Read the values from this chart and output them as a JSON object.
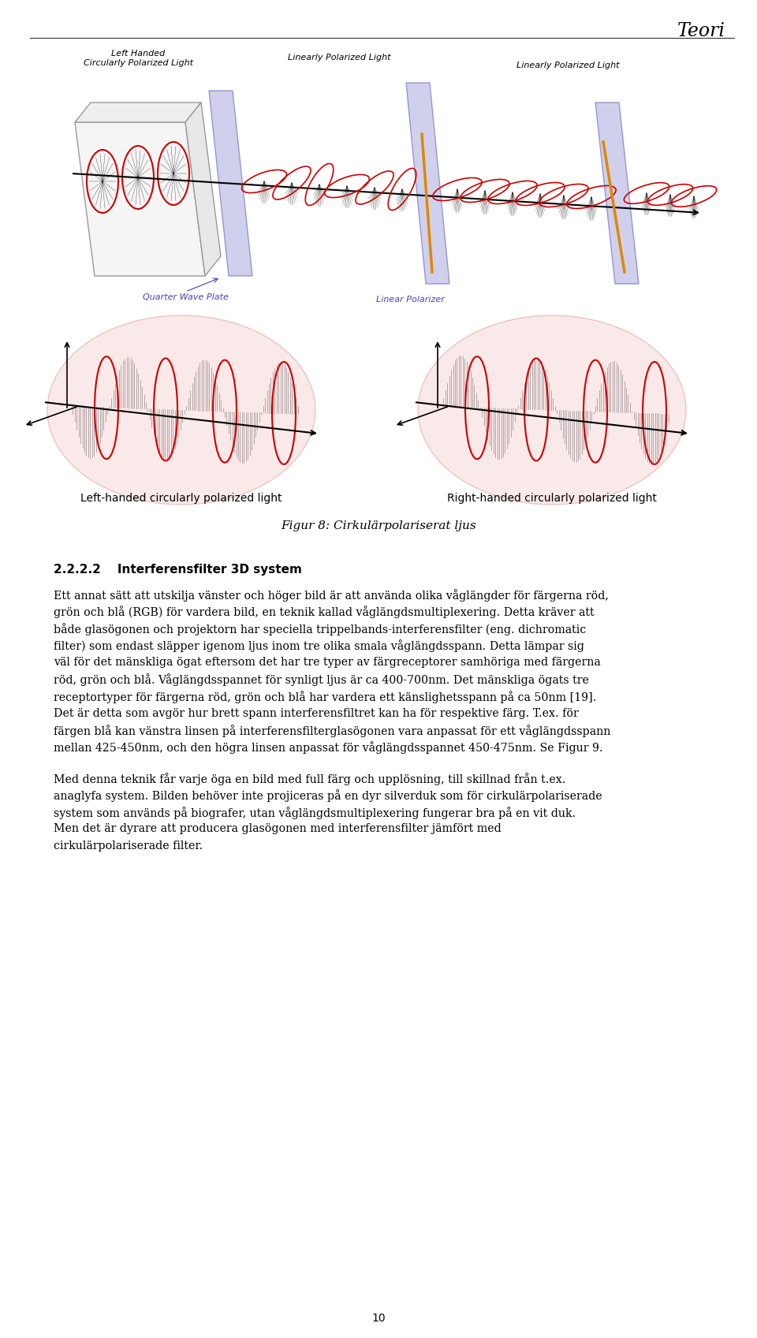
{
  "page_title": "Teori",
  "section_heading": "2.2.2.2    Interferensfilter 3D system",
  "paragraph1_lines": [
    "Ett annat sätt att utskilja vänster och höger bild är att använda olika våglängder för färgerna röd,",
    "grön och blå (RGB) för vardera bild, en teknik kallad våglängdsmultiplexering. Detta kräver att",
    "både glasögonen och projektorn har speciella trippelbands-interferensfilter (eng. dichromatic",
    "filter) som endast släpper igenom ljus inom tre olika smala våglängdsspann. Detta lämpar sig",
    "väl för det mänskliga ögat eftersom det har tre typer av färgreceptorer samhöriga med färgerna",
    "röd, grön och blå. Våglängdsspannet för synligt ljus är ca 400-700nm. Det mänskliga ögats tre",
    "receptortyper för färgerna röd, grön och blå har vardera ett känslighetsspann på ca 50nm [19].",
    "Det är detta som avgör hur brett spann interferensfiltret kan ha för respektive färg. T.ex. för",
    "färgen blå kan vänstra linsen på interferensfilterglasögonen vara anpassat för ett våglängdsspann",
    "mellan 425-450nm, och den högra linsen anpassat för våglängdsspannet 450-475nm. Se Figur 9."
  ],
  "paragraph2_lines": [
    "Med denna teknik får varje öga en bild med full färg och upplösning, till skillnad från t.ex.",
    "anaglyfa system. Bilden behöver inte projiceras på en dyr silverduk som för cirkulärpolariserade",
    "system som används på biografer, utan våglängdsmultiplexering fungerar bra på en vit duk.",
    "Men det är dyrare att producera glasögonen med interferensfilter jämfört med",
    "cirkulärpolariserade filter."
  ],
  "fig_caption": "Figur 8: Cirkulärpolariserat ljus",
  "left_label": "Left-handed circularly polarized light",
  "right_label": "Right-handed circularly polarized light",
  "page_number": "10",
  "bg_color": "#ffffff",
  "text_color": "#000000",
  "top_fig_label1": "Left Handed\nCircularly Polarized Light",
  "top_fig_label2": "Linearly Polarized Light",
  "top_fig_label3": "Linearly Polarized Light",
  "top_fig_label4": "Quarter Wave Plate",
  "top_fig_label5": "Linear Polarizer"
}
